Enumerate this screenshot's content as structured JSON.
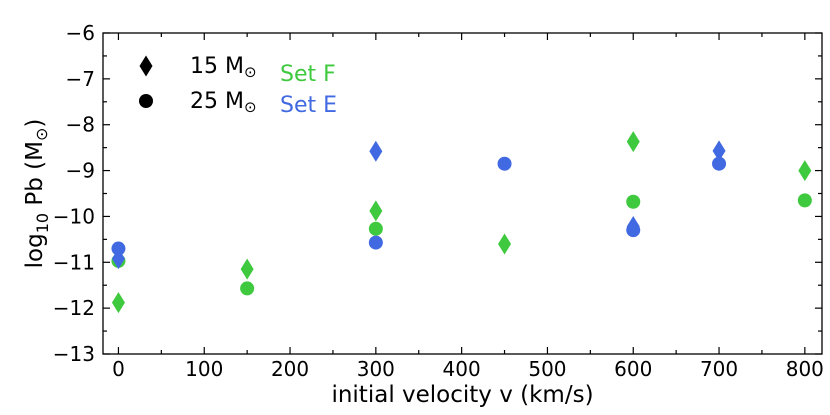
{
  "chart_data": {
    "type": "scatter",
    "xlabel": "initial velocity v (km/s)",
    "ylabel_main": "log",
    "ylabel_sub": "10",
    "ylabel_rest": " Pb (M",
    "ylabel_sym": "⊙",
    "ylabel_close": ")",
    "xlim": [
      -18,
      820
    ],
    "ylim": [
      -13,
      -6
    ],
    "xticks": [
      0,
      100,
      200,
      300,
      400,
      500,
      600,
      700,
      800
    ],
    "yticks": [
      -13,
      -12,
      -11,
      -10,
      -9,
      -8,
      -7,
      -6
    ],
    "xtick_labels": [
      "0",
      "100",
      "200",
      "300",
      "400",
      "500",
      "600",
      "700",
      "800"
    ],
    "ytick_labels": [
      "−13",
      "−12",
      "−11",
      "−10",
      "−9",
      "−8",
      "−7",
      "−6"
    ],
    "colors": {
      "set_f": "#3ec93e",
      "set_e": "#4169e1"
    },
    "legend": {
      "placement": "top-left",
      "markers": [
        {
          "shape": "diamond",
          "label_num": "15 M",
          "label_sym": "⊙"
        },
        {
          "shape": "circle",
          "label_num": "25 M",
          "label_sym": "⊙"
        }
      ],
      "sets": [
        {
          "label": "Set F",
          "color_key": "set_f"
        },
        {
          "label": "Set E",
          "color_key": "set_e"
        }
      ]
    },
    "series": [
      {
        "name": "Set F 15 Msun",
        "set": "set_f",
        "shape": "diamond",
        "points": [
          {
            "x": 0,
            "y": -11.88
          },
          {
            "x": 150,
            "y": -11.15
          },
          {
            "x": 300,
            "y": -9.88
          },
          {
            "x": 450,
            "y": -10.6
          },
          {
            "x": 600,
            "y": -8.37
          },
          {
            "x": 800,
            "y": -9.0
          }
        ]
      },
      {
        "name": "Set F 25 Msun",
        "set": "set_f",
        "shape": "circle",
        "points": [
          {
            "x": 0,
            "y": -10.97
          },
          {
            "x": 150,
            "y": -11.57
          },
          {
            "x": 300,
            "y": -10.27
          },
          {
            "x": 600,
            "y": -9.68
          },
          {
            "x": 800,
            "y": -9.65
          }
        ]
      },
      {
        "name": "Set E 15 Msun",
        "set": "set_e",
        "shape": "diamond",
        "points": [
          {
            "x": 0,
            "y": -10.92
          },
          {
            "x": 300,
            "y": -8.58
          },
          {
            "x": 600,
            "y": -10.22
          },
          {
            "x": 700,
            "y": -8.57
          }
        ]
      },
      {
        "name": "Set E 25 Msun",
        "set": "set_e",
        "shape": "circle",
        "points": [
          {
            "x": 0,
            "y": -10.7
          },
          {
            "x": 300,
            "y": -10.57
          },
          {
            "x": 450,
            "y": -8.85
          },
          {
            "x": 600,
            "y": -10.3
          },
          {
            "x": 700,
            "y": -8.85
          }
        ]
      }
    ]
  }
}
